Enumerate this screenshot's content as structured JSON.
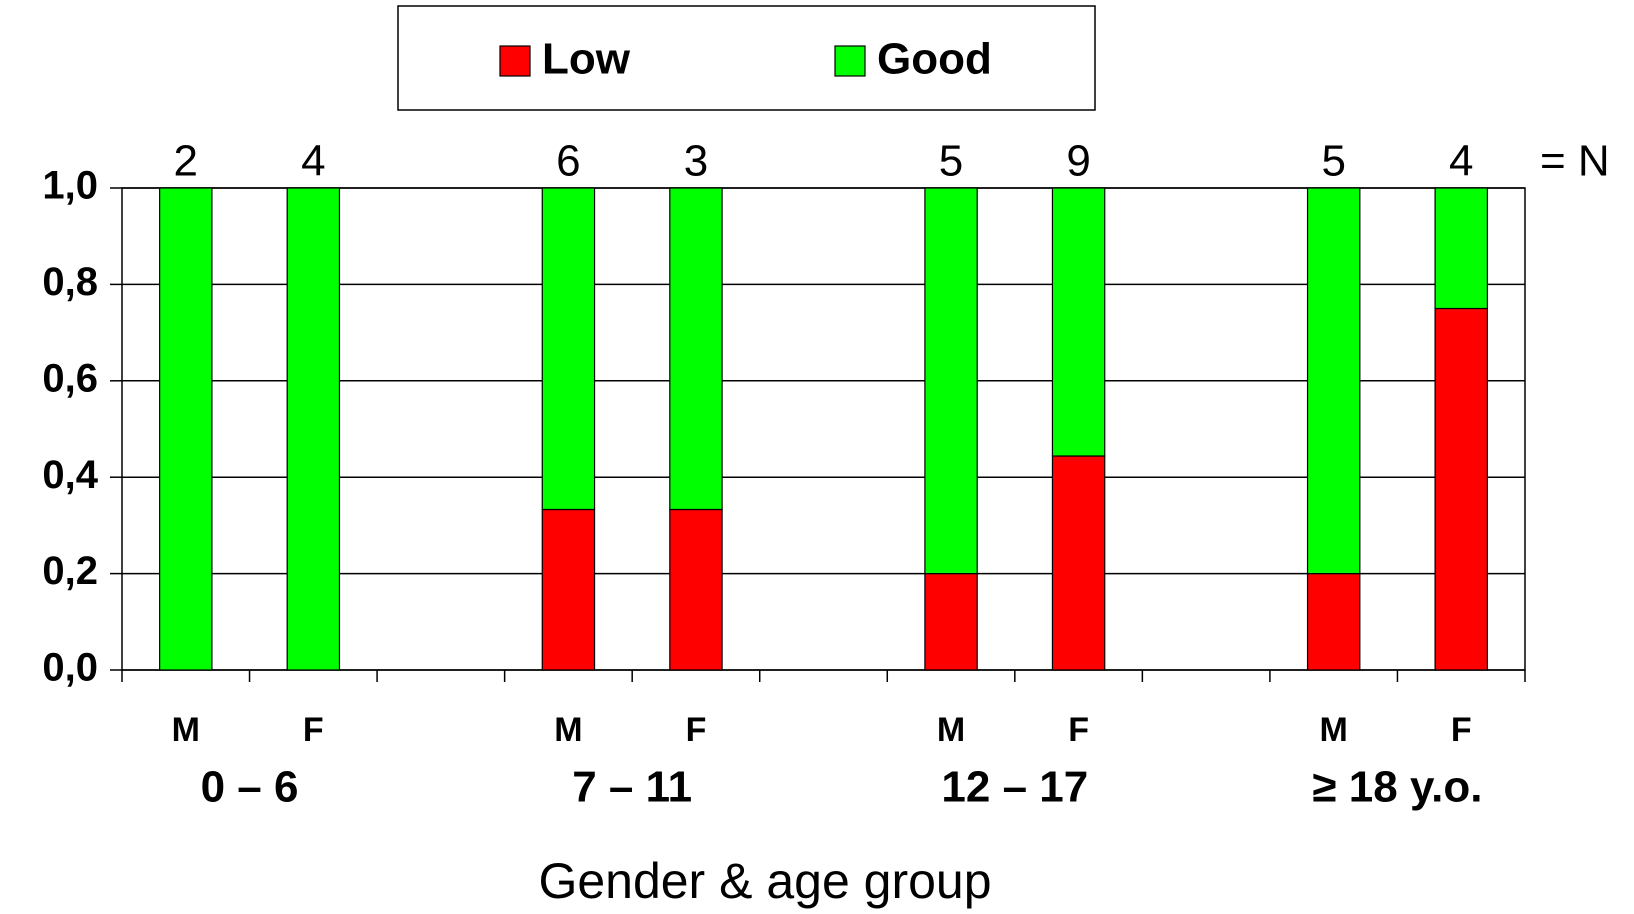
{
  "chart_data": {
    "type": "stacked_bar",
    "categories": [
      "M",
      "F",
      null,
      "M",
      "F",
      null,
      "M",
      "F",
      null,
      "M",
      "F"
    ],
    "groups": [
      "0 – 6",
      "7 – 11",
      "12 – 17",
      "≥ 18 y.o."
    ],
    "n": [
      2,
      4,
      null,
      6,
      3,
      null,
      5,
      9,
      null,
      5,
      4
    ],
    "n_label": "= N",
    "series": [
      {
        "name": "Low",
        "color": "#ff0000",
        "values": [
          0,
          0,
          null,
          0.333,
          0.333,
          null,
          0.2,
          0.444,
          null,
          0.2,
          0.75
        ]
      },
      {
        "name": "Good",
        "color": "#00ff00",
        "values": [
          1,
          1,
          null,
          0.667,
          0.667,
          null,
          0.8,
          0.556,
          null,
          0.8,
          0.25
        ]
      }
    ],
    "ylim": [
      0,
      1
    ],
    "yticks": [
      {
        "value": 0,
        "label": "0,0"
      },
      {
        "value": 0.2,
        "label": "0,2"
      },
      {
        "value": 0.4,
        "label": "0,4"
      },
      {
        "value": 0.6,
        "label": "0,6"
      },
      {
        "value": 0.8,
        "label": "0,8"
      },
      {
        "value": 1,
        "label": "1,0"
      }
    ],
    "x_label": "Gender & age group",
    "grid": true,
    "legend": "top"
  }
}
